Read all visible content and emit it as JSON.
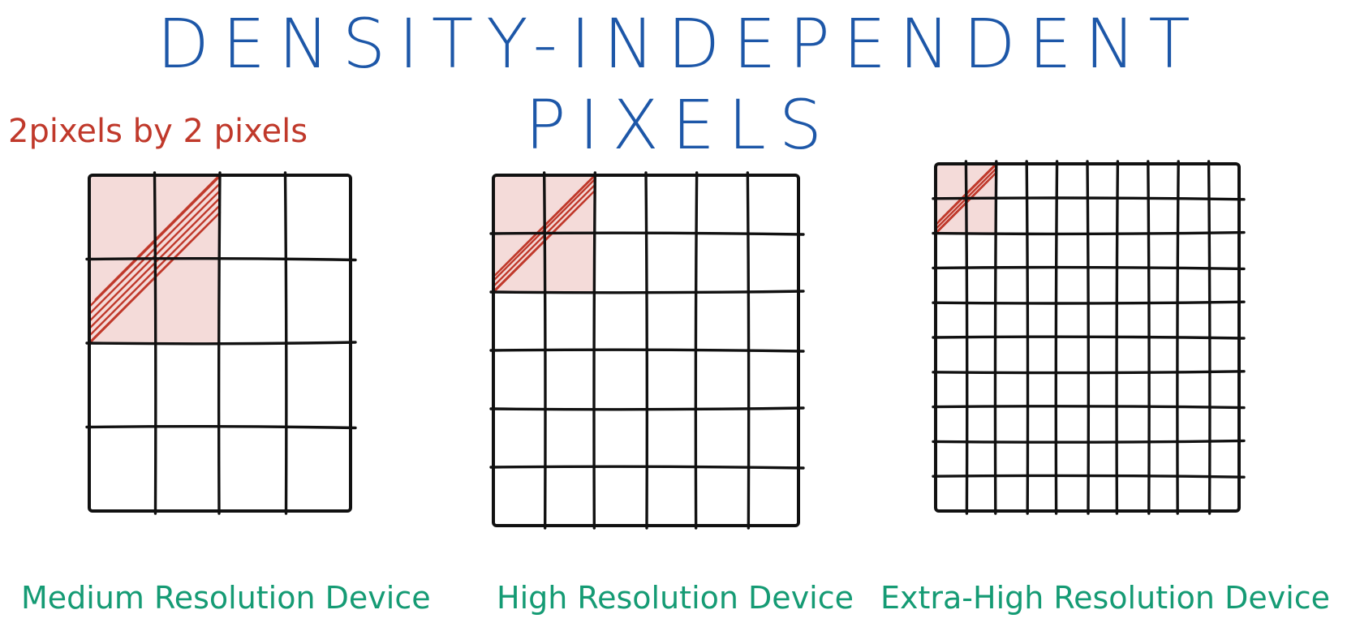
{
  "title": "DENSITY-INDEPENDENT PIXELS",
  "highlight_note": "2pixels by 2 pixels",
  "colors": {
    "title": "#1d57a8",
    "highlight": "#c0392b",
    "label": "#159b74",
    "grid_line": "#111111"
  },
  "devices": [
    {
      "label": "Medium Resolution Device",
      "cells": 4,
      "highlight_cells": 2
    },
    {
      "label": "High Resolution Device",
      "cells": 6,
      "highlight_cells": 2
    },
    {
      "label": "Extra-High Resolution Device",
      "cells": 10,
      "highlight_cells": 2
    }
  ]
}
